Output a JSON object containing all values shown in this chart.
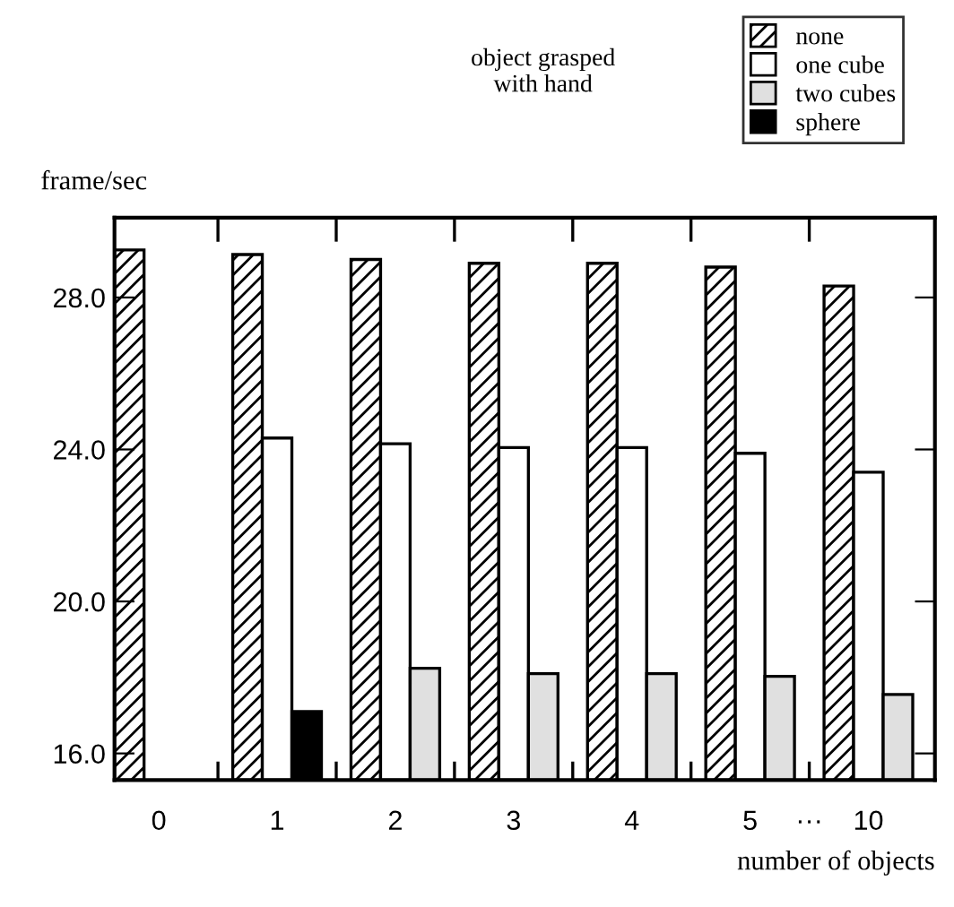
{
  "chart_data": {
    "type": "bar",
    "ylabel": "frame/sec",
    "xlabel": "number of objects",
    "legend_title": "object grasped\nwith hand",
    "legend": "top right",
    "categories": [
      "0",
      "1",
      "2",
      "3",
      "4",
      "5",
      "10"
    ],
    "series": [
      {
        "name": "none",
        "color": "#000000",
        "values": [
          29.25,
          29.13,
          29.0,
          28.9,
          28.9,
          28.8,
          28.3
        ]
      },
      {
        "name": "one cube",
        "color": "#ffffff",
        "values": [
          null,
          24.3,
          24.15,
          24.05,
          24.05,
          23.9,
          23.4
        ]
      },
      {
        "name": "two cubes",
        "color": "#e0e0e0",
        "values": [
          null,
          null,
          18.24,
          18.1,
          18.1,
          18.03,
          17.55
        ]
      },
      {
        "name": "sphere",
        "color": "#000000",
        "values": [
          null,
          17.1,
          null,
          null,
          null,
          null,
          null
        ]
      }
    ],
    "ylim": [
      15.3,
      30.1
    ],
    "yticks": [
      {
        "value": 16,
        "label": "16.0"
      },
      {
        "value": 20,
        "label": "20.0"
      },
      {
        "value": 24,
        "label": "24.0"
      },
      {
        "value": 28,
        "label": "28.0"
      }
    ],
    "annotations": [
      "···"
    ],
    "grid": false
  }
}
